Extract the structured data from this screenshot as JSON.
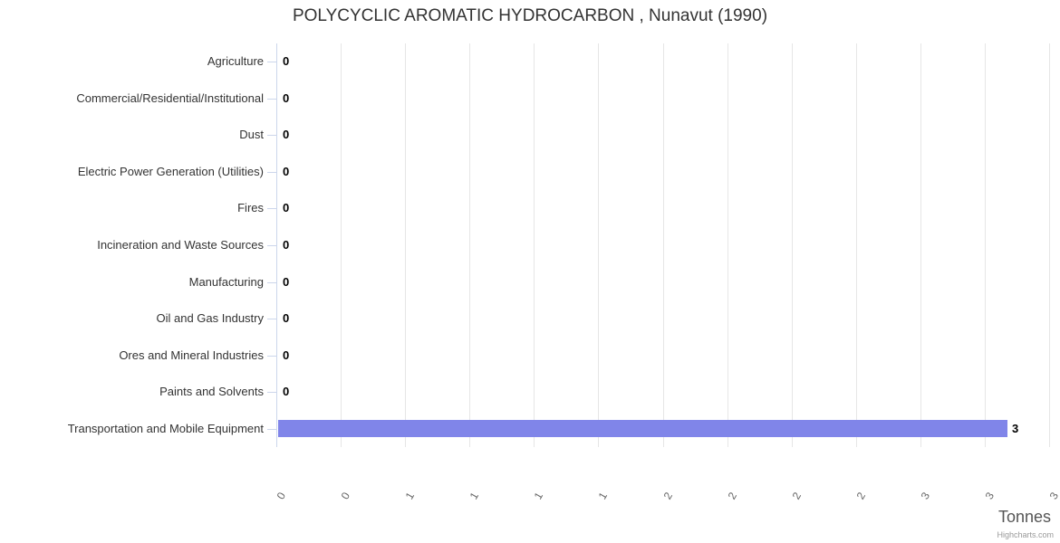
{
  "header": {
    "title": "POLYCYCLIC AROMATIC HYDROCARBON , Nunavut (1990)"
  },
  "chart_data": {
    "type": "bar",
    "orientation": "horizontal",
    "title": "POLYCYCLIC AROMATIC HYDROCARBON , Nunavut (1990)",
    "categories": [
      "Agriculture",
      "Commercial/Residential/Institutional",
      "Dust",
      "Electric Power Generation (Utilities)",
      "Fires",
      "Incineration and Waste Sources",
      "Manufacturing",
      "Oil and Gas Industry",
      "Ores and Mineral Industries",
      "Paints and Solvents",
      "Transportation and Mobile Equipment"
    ],
    "values": [
      0,
      0,
      0,
      0,
      0,
      0,
      0,
      0,
      0,
      0,
      2.83
    ],
    "data_labels": [
      "0",
      "0",
      "0",
      "0",
      "0",
      "0",
      "0",
      "0",
      "0",
      "0",
      "3"
    ],
    "xlabel": "Tonnes",
    "ylabel": "",
    "xlim": [
      0,
      3
    ],
    "tick_interval": 0.25,
    "tick_labels": [
      "0",
      "0",
      "1",
      "1",
      "1",
      "1",
      "2",
      "2",
      "2",
      "2",
      "3",
      "3",
      "3"
    ],
    "grid": true,
    "legend": false,
    "bar_color": "#8085e9"
  },
  "colors": {
    "bar": "#8085e9",
    "axis_line": "#ccd6eb",
    "gridline": "#e6e6e6",
    "title_text": "#333333",
    "category_label": "#333333",
    "tick_label": "#666666",
    "data_label": "#000000",
    "axis_title": "#555555",
    "credits": "#999999"
  },
  "credits": {
    "label": "Highcharts.com"
  }
}
